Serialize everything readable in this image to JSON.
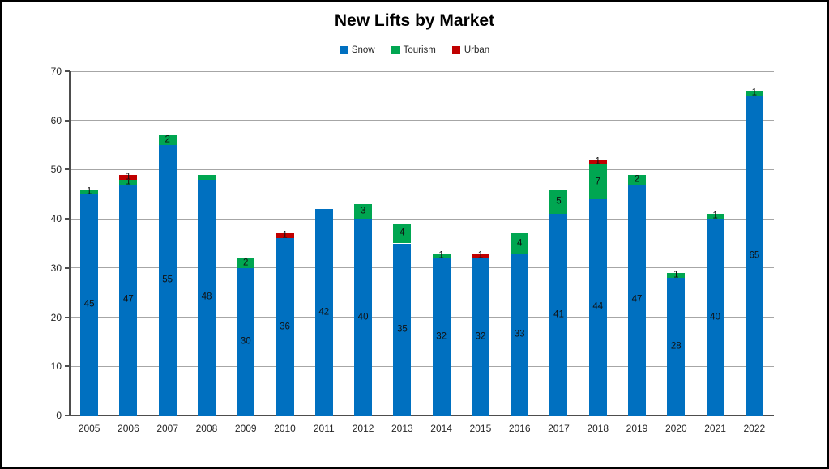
{
  "title": "New Lifts by Market",
  "colors": {
    "snow": "#0070C0",
    "tourism": "#00A651",
    "urban": "#C00000",
    "gridline": "#a6a6a6",
    "axis": "#4d4d4d",
    "text": "#262626"
  },
  "legend": {
    "items": [
      {
        "id": "snow",
        "label": "Snow",
        "color": "#0070C0"
      },
      {
        "id": "tourism",
        "label": "Tourism",
        "color": "#00A651"
      },
      {
        "id": "urban",
        "label": "Urban",
        "color": "#C00000"
      }
    ]
  },
  "chart_data": {
    "type": "bar",
    "stacked": true,
    "title": "New Lifts by Market",
    "xlabel": "",
    "ylabel": "",
    "ylim": [
      0,
      70
    ],
    "y_ticks": [
      0,
      10,
      20,
      30,
      40,
      50,
      60,
      70
    ],
    "grid": true,
    "legend_position": "top",
    "categories": [
      "2005",
      "2006",
      "2007",
      "2008",
      "2009",
      "2010",
      "2011",
      "2012",
      "2013",
      "2014",
      "2015",
      "2016",
      "2017",
      "2018",
      "2019",
      "2020",
      "2021",
      "2022"
    ],
    "series": [
      {
        "name": "Snow",
        "color": "#0070C0",
        "values": [
          45,
          47,
          55,
          48,
          30,
          36,
          42,
          40,
          35,
          32,
          32,
          33,
          41,
          44,
          47,
          28,
          40,
          65
        ],
        "labels": [
          "45",
          "47",
          "55",
          "48",
          "30",
          "36",
          "42",
          "40",
          "35",
          "32",
          "32",
          "33",
          "41",
          "44",
          "47",
          "28",
          "40",
          "65"
        ]
      },
      {
        "name": "Tourism",
        "color": "#00A651",
        "values": [
          1,
          1,
          2,
          1,
          2,
          0,
          0,
          3,
          4,
          1,
          0,
          4,
          5,
          7,
          2,
          1,
          1,
          1
        ],
        "labels": [
          "1",
          "1",
          "2",
          "",
          "2",
          "",
          "",
          "3",
          "4",
          "1",
          "",
          "4",
          "5",
          "7",
          "2",
          "1",
          "1",
          "1"
        ]
      },
      {
        "name": "Urban",
        "color": "#C00000",
        "values": [
          0,
          1,
          0,
          0,
          0,
          1,
          0,
          0,
          0,
          0,
          1,
          0,
          0,
          1,
          0,
          0,
          0,
          0
        ],
        "labels": [
          "",
          "1",
          "",
          "",
          "",
          "1",
          "",
          "",
          "",
          "",
          "1",
          "",
          "",
          "1",
          "",
          "",
          "",
          ""
        ]
      }
    ],
    "totals": [
      46,
      49,
      57,
      49,
      32,
      37,
      42,
      43,
      39,
      33,
      33,
      37,
      46,
      52,
      49,
      29,
      41,
      66
    ]
  }
}
